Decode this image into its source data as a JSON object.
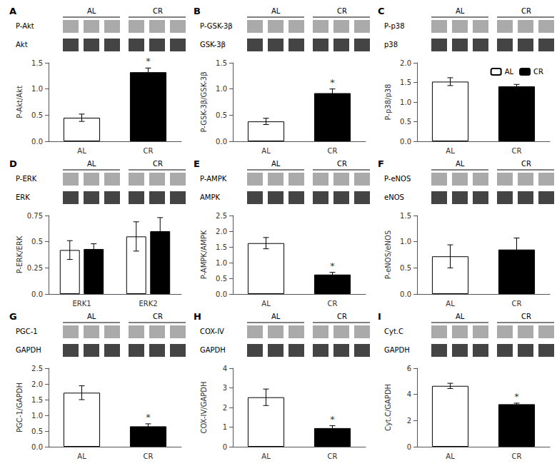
{
  "chart_data": [
    {
      "type": "bar",
      "title": "A",
      "ylabel": "P-Akt/Akt",
      "blot_rows": [
        "P-Akt",
        "Akt"
      ],
      "blot_groups": [
        "AL",
        "CR"
      ],
      "blot_colors": [
        "#aaaaaa",
        "#444444"
      ],
      "categories": [
        "AL",
        "CR"
      ],
      "series": [
        {
          "name": "AL",
          "color": "white",
          "values": [
            0.45,
            null
          ],
          "errors": [
            0.07,
            null
          ]
        },
        {
          "name": "CR",
          "color": "black",
          "values": [
            null,
            1.32
          ],
          "errors": [
            null,
            0.08
          ]
        }
      ],
      "annotations": [
        {
          "text": "*",
          "x": "CR"
        }
      ],
      "ylim": [
        0,
        1.5
      ],
      "yticks": [
        {
          "value": 0,
          "label": "0.0"
        },
        0.5,
        {
          "value": 1,
          "label": "1.0"
        },
        1.5
      ],
      "grid": false
    },
    {
      "type": "bar",
      "title": "B",
      "ylabel": "P-GSK-3β/GSK-3β",
      "blot_rows": [
        "P-GSK-3β",
        "GSK-3β"
      ],
      "blot_groups": [
        "AL",
        "CR"
      ],
      "blot_colors": [
        "#aaaaaa",
        "#444444"
      ],
      "categories": [
        "AL",
        "CR"
      ],
      "series": [
        {
          "name": "AL",
          "color": "white",
          "values": [
            0.38,
            null
          ],
          "errors": [
            0.06,
            null
          ]
        },
        {
          "name": "CR",
          "color": "black",
          "values": [
            null,
            0.92
          ],
          "errors": [
            null,
            0.08
          ]
        }
      ],
      "annotations": [
        {
          "text": "*",
          "x": "CR"
        }
      ],
      "ylim": [
        0,
        1.5
      ],
      "yticks": [
        {
          "value": 0,
          "label": "0.0"
        },
        0.5,
        {
          "value": 1,
          "label": "1.0"
        },
        1.5
      ],
      "grid": false
    },
    {
      "type": "bar",
      "title": "C",
      "ylabel": "P-p38/p38",
      "blot_rows": [
        "P-p38",
        "p38"
      ],
      "blot_groups": [
        "AL",
        "CR"
      ],
      "blot_colors": [
        "#aaaaaa",
        "#444444"
      ],
      "categories": [
        "AL",
        "CR"
      ],
      "series": [
        {
          "name": "AL",
          "color": "white",
          "values": [
            1.52,
            null
          ],
          "errors": [
            0.1,
            null
          ]
        },
        {
          "name": "CR",
          "color": "black",
          "values": [
            null,
            1.4
          ],
          "errors": [
            null,
            0.05
          ]
        }
      ],
      "ylim": [
        0,
        2.0
      ],
      "yticks": [
        {
          "value": 0,
          "label": "0.0"
        },
        0.5,
        {
          "value": 1,
          "label": "1.0"
        },
        1.5,
        {
          "value": 2,
          "label": "2.0"
        }
      ],
      "grid": false,
      "legend": "upper right"
    },
    {
      "type": "bar",
      "title": "D",
      "ylabel": "P-ERK/ERK",
      "blot_rows": [
        "P-ERK",
        "ERK"
      ],
      "blot_groups": [
        "AL",
        "CR"
      ],
      "blot_colors": [
        "#aaaaaa",
        "#444444"
      ],
      "categories": [
        "ERK1",
        "ERK2"
      ],
      "series": [
        {
          "name": "AL",
          "color": "white",
          "values": [
            0.42,
            0.55
          ],
          "errors": [
            0.09,
            0.14
          ]
        },
        {
          "name": "CR",
          "color": "black",
          "values": [
            0.43,
            0.6
          ],
          "errors": [
            0.05,
            0.13
          ]
        }
      ],
      "ylim": [
        0,
        0.75
      ],
      "yticks": [
        {
          "value": 0,
          "label": "0.0"
        },
        0.25,
        0.5,
        0.75
      ],
      "grid": false
    },
    {
      "type": "bar",
      "title": "E",
      "ylabel": "P-AMPK/AMPK",
      "blot_rows": [
        "P-AMPK",
        "AMPK"
      ],
      "blot_groups": [
        "AL",
        "CR"
      ],
      "blot_colors": [
        "#aaaaaa",
        "#444444"
      ],
      "categories": [
        "AL",
        "CR"
      ],
      "series": [
        {
          "name": "AL",
          "color": "white",
          "values": [
            1.62,
            null
          ],
          "errors": [
            0.18,
            null
          ]
        },
        {
          "name": "CR",
          "color": "black",
          "values": [
            null,
            0.62
          ],
          "errors": [
            null,
            0.07
          ]
        }
      ],
      "annotations": [
        {
          "text": "*",
          "x": "CR"
        }
      ],
      "ylim": [
        0,
        2.5
      ],
      "yticks": [
        {
          "value": 0,
          "label": "0.0"
        },
        0.5,
        {
          "value": 1,
          "label": "1.0"
        },
        1.5,
        {
          "value": 2,
          "label": "2.0"
        },
        2.5
      ],
      "grid": false
    },
    {
      "type": "bar",
      "title": "F",
      "ylabel": "P-eNOS/eNOS",
      "blot_rows": [
        "P-eNOS",
        "eNOS"
      ],
      "blot_groups": [
        "AL",
        "CR"
      ],
      "blot_colors": [
        "#aaaaaa",
        "#444444"
      ],
      "categories": [
        "AL",
        "CR"
      ],
      "series": [
        {
          "name": "AL",
          "color": "white",
          "values": [
            0.72,
            null
          ],
          "errors": [
            0.22,
            null
          ]
        },
        {
          "name": "CR",
          "color": "black",
          "values": [
            null,
            0.85
          ],
          "errors": [
            null,
            0.22
          ]
        }
      ],
      "ylim": [
        0,
        1.5
      ],
      "yticks": [
        {
          "value": 0,
          "label": "0.0"
        },
        0.5,
        {
          "value": 1,
          "label": "1.0"
        },
        1.5
      ],
      "grid": false
    },
    {
      "type": "bar",
      "title": "G",
      "ylabel": "PGC-1/GAPDH",
      "blot_rows": [
        "PGC-1",
        "GAPDH"
      ],
      "blot_groups": [
        "AL",
        "CR"
      ],
      "blot_colors": [
        "#aaaaaa",
        "#444444"
      ],
      "categories": [
        "AL",
        "CR"
      ],
      "series": [
        {
          "name": "AL",
          "color": "white",
          "values": [
            1.72,
            null
          ],
          "errors": [
            0.22,
            null
          ]
        },
        {
          "name": "CR",
          "color": "black",
          "values": [
            null,
            0.65
          ],
          "errors": [
            null,
            0.08
          ]
        }
      ],
      "annotations": [
        {
          "text": "*",
          "x": "CR"
        }
      ],
      "ylim": [
        0,
        2.5
      ],
      "yticks": [
        {
          "value": 0,
          "label": "0.0"
        },
        0.5,
        {
          "value": 1,
          "label": "1.0"
        },
        1.5,
        {
          "value": 2,
          "label": "2.0"
        },
        2.5
      ],
      "grid": false
    },
    {
      "type": "bar",
      "title": "H",
      "ylabel": "COX-IV/GAPDH",
      "blot_rows": [
        "COX-IV",
        "GAPDH"
      ],
      "blot_groups": [
        "AL",
        "CR"
      ],
      "blot_colors": [
        "#aaaaaa",
        "#444444"
      ],
      "categories": [
        "AL",
        "CR"
      ],
      "series": [
        {
          "name": "AL",
          "color": "white",
          "values": [
            2.52,
            null
          ],
          "errors": [
            0.42,
            null
          ]
        },
        {
          "name": "CR",
          "color": "black",
          "values": [
            null,
            0.95
          ],
          "errors": [
            null,
            0.12
          ]
        }
      ],
      "annotations": [
        {
          "text": "*",
          "x": "CR"
        }
      ],
      "ylim": [
        0,
        4
      ],
      "yticks": [
        0,
        1,
        2,
        3,
        4
      ],
      "grid": false
    },
    {
      "type": "bar",
      "title": "I",
      "ylabel": "Cyt.C/GAPDH",
      "blot_rows": [
        "Cyt.C",
        "GAPDH"
      ],
      "blot_groups": [
        "AL",
        "CR"
      ],
      "blot_colors": [
        "#aaaaaa",
        "#444444"
      ],
      "categories": [
        "AL",
        "CR"
      ],
      "series": [
        {
          "name": "AL",
          "color": "white",
          "values": [
            4.65,
            null
          ],
          "errors": [
            0.2,
            null
          ]
        },
        {
          "name": "CR",
          "color": "black",
          "values": [
            null,
            3.25
          ],
          "errors": [
            null,
            0.08
          ]
        }
      ],
      "annotations": [
        {
          "text": "*",
          "x": "CR"
        }
      ],
      "ylim": [
        0,
        6
      ],
      "yticks": [
        0,
        2,
        4,
        6
      ],
      "grid": false
    }
  ]
}
